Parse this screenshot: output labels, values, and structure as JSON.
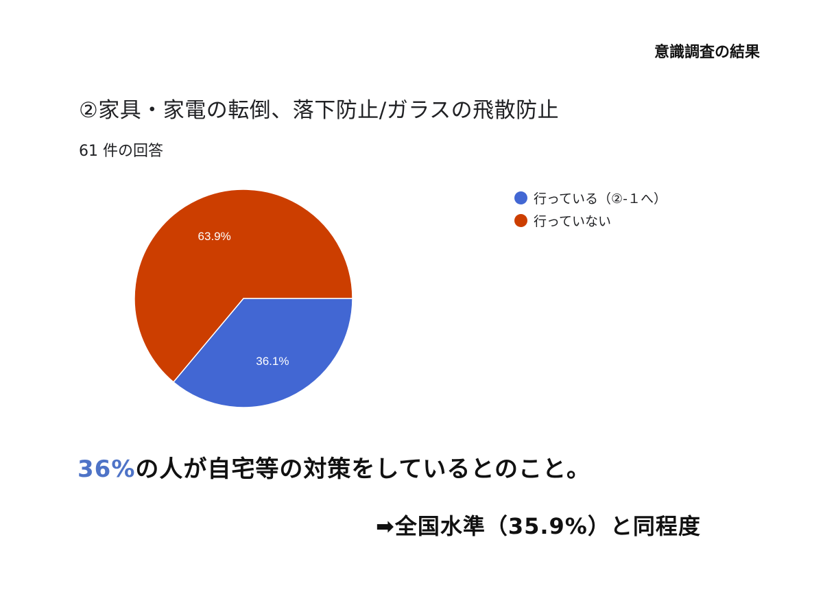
{
  "header": {
    "label": "意識調査の結果"
  },
  "question": {
    "title": "②家具・家電の転倒、落下防止/ガラスの飛散防止",
    "response_count": "61 件の回答"
  },
  "chart_data": {
    "type": "pie",
    "categories": [
      "行っている（②-１へ）",
      "行っていない"
    ],
    "values": [
      36.1,
      63.9
    ],
    "labels": [
      "36.1%",
      "63.9%"
    ],
    "colors": [
      "#4267d3",
      "#cc3e00"
    ],
    "legend_position": "right"
  },
  "summary": {
    "highlight": "36%",
    "text": "の人が自宅等の対策をしているとのこと。"
  },
  "conclusion": {
    "text": "➡全国水準（35.9%）と同程度"
  }
}
